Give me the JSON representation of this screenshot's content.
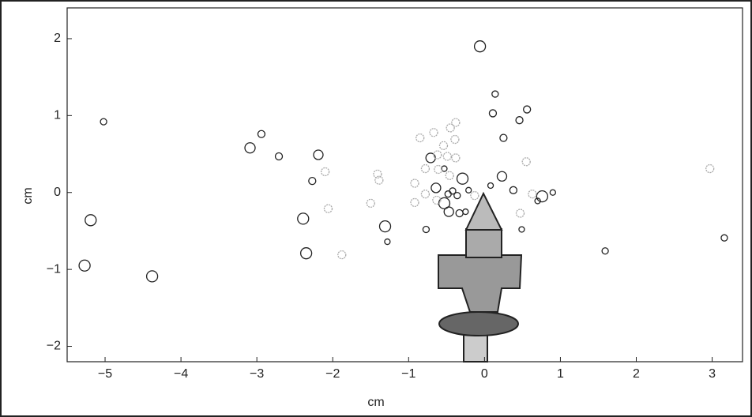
{
  "chart_data": {
    "type": "scatter",
    "xlabel": "cm",
    "ylabel": "cm",
    "xlim": [
      -5.5,
      3.4
    ],
    "ylim": [
      -2.2,
      2.4
    ],
    "xticks": [
      {
        "value": -5,
        "label": "−5"
      },
      {
        "value": -4,
        "label": "−4"
      },
      {
        "value": -3,
        "label": "−3"
      },
      {
        "value": -2,
        "label": "−2"
      },
      {
        "value": -1,
        "label": "−1"
      },
      0,
      1,
      2,
      3
    ],
    "yticks": [
      {
        "value": -2,
        "label": "−2"
      },
      {
        "value": -1,
        "label": "−1"
      },
      0,
      1,
      2
    ],
    "grid": false,
    "series": [
      {
        "color": "#222222",
        "x": [
          -0.06,
          0.14,
          -5.02,
          0.11,
          0.56,
          0.46,
          0.25,
          -3.09,
          -2.94,
          -2.71,
          -2.19,
          -0.71,
          0.23,
          -0.29,
          -0.53,
          -2.27,
          0.08,
          0.38,
          -0.21,
          -0.64,
          0.76,
          0.9,
          0.7,
          -0.53,
          -0.48,
          -0.42,
          -0.36,
          -0.47,
          -0.33,
          -0.25,
          -5.19,
          -2.39,
          -1.31,
          -0.77,
          -2.35,
          -1.28,
          0.49,
          1.59,
          3.16,
          -5.27,
          -4.38
        ],
        "values": [
          1.9,
          1.28,
          0.92,
          1.03,
          1.08,
          0.94,
          0.71,
          0.58,
          0.76,
          0.47,
          0.49,
          0.45,
          0.21,
          0.18,
          0.31,
          0.15,
          0.09,
          0.03,
          0.03,
          0.06,
          -0.05,
          0,
          -0.11,
          -0.14,
          -0.02,
          0.02,
          -0.04,
          -0.25,
          -0.27,
          -0.25,
          -0.36,
          -0.34,
          -0.44,
          -0.48,
          -0.79,
          -0.64,
          -0.48,
          -0.76,
          -0.59,
          -0.95,
          -1.09
        ],
        "sizes": [
          7,
          4,
          4,
          4.5,
          4.5,
          4.5,
          4.5,
          6.5,
          4.5,
          4.5,
          6,
          6,
          6,
          7,
          3.5,
          4.5,
          3.5,
          4.5,
          3.5,
          6,
          7,
          3.5,
          3.5,
          7,
          4,
          4,
          4,
          6,
          4.5,
          3.5,
          7,
          7,
          7,
          4,
          7,
          3.5,
          3.5,
          4,
          4,
          7,
          7
        ]
      },
      {
        "color": "#aaaaaa",
        "x": [
          -0.38,
          -0.45,
          -0.67,
          -0.85,
          -0.39,
          -0.54,
          -0.62,
          -0.49,
          -0.38,
          0.55,
          -2.1,
          -1.41,
          -1.39,
          -0.61,
          -0.46,
          -0.78,
          -0.92,
          2.97,
          -2.06,
          -1.5,
          -0.78,
          -0.63,
          0.63,
          0.47,
          -1.88,
          -0.92,
          -0.13
        ],
        "values": [
          0.91,
          0.84,
          0.78,
          0.71,
          0.69,
          0.61,
          0.49,
          0.47,
          0.45,
          0.4,
          0.27,
          0.24,
          0.16,
          0.3,
          0.22,
          0.31,
          0.12,
          0.31,
          -0.21,
          -0.14,
          -0.02,
          -0.1,
          -0.02,
          -0.27,
          -0.81,
          -0.13,
          -0.04
        ],
        "sizes": [
          5,
          5,
          5,
          5,
          5,
          5,
          5,
          5,
          5,
          5,
          5,
          5,
          5,
          5,
          5,
          5,
          5,
          5,
          5,
          5,
          5,
          5,
          5,
          5,
          5,
          5,
          5
        ]
      }
    ]
  }
}
